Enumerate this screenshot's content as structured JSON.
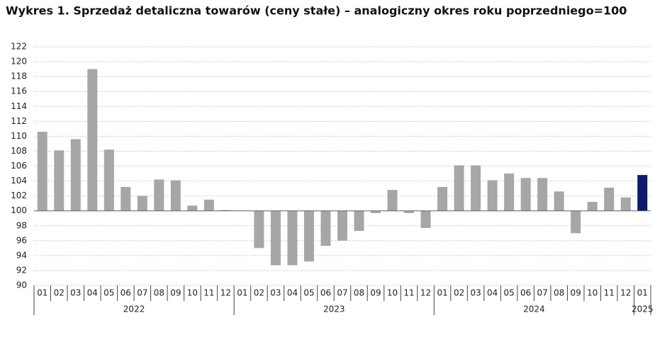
{
  "chart_data": {
    "type": "bar",
    "title": "Wykres 1. Sprzedaż detaliczna towarów (ceny stałe) – analogiczny okres roku poprzedniego=100",
    "groups": [
      {
        "name": "2022",
        "categories": [
          "01",
          "02",
          "03",
          "04",
          "05",
          "06",
          "07",
          "08",
          "09",
          "10",
          "11",
          "12"
        ]
      },
      {
        "name": "2023",
        "categories": [
          "01",
          "02",
          "03",
          "04",
          "05",
          "06",
          "07",
          "08",
          "09",
          "10",
          "11",
          "12"
        ]
      },
      {
        "name": "2024",
        "categories": [
          "01",
          "02",
          "03",
          "04",
          "05",
          "06",
          "07",
          "08",
          "09",
          "10",
          "11",
          "12"
        ]
      },
      {
        "name": "2025",
        "categories": [
          "01"
        ]
      }
    ],
    "values": [
      110.6,
      108.1,
      109.6,
      119.0,
      108.2,
      103.2,
      102.0,
      104.2,
      104.1,
      100.7,
      101.5,
      100.1,
      100.0,
      95.0,
      92.7,
      92.7,
      93.2,
      95.3,
      96.0,
      97.3,
      99.7,
      102.8,
      99.7,
      97.7,
      103.2,
      106.1,
      106.1,
      104.1,
      105.0,
      104.4,
      104.4,
      102.6,
      97.0,
      101.2,
      103.1,
      101.8,
      104.8
    ],
    "colors": [
      "#a6a6a6",
      "#a6a6a6",
      "#a6a6a6",
      "#a6a6a6",
      "#a6a6a6",
      "#a6a6a6",
      "#a6a6a6",
      "#a6a6a6",
      "#a6a6a6",
      "#a6a6a6",
      "#a6a6a6",
      "#a6a6a6",
      "#a6a6a6",
      "#a6a6a6",
      "#a6a6a6",
      "#a6a6a6",
      "#a6a6a6",
      "#a6a6a6",
      "#a6a6a6",
      "#a6a6a6",
      "#a6a6a6",
      "#a6a6a6",
      "#a6a6a6",
      "#a6a6a6",
      "#a6a6a6",
      "#a6a6a6",
      "#a6a6a6",
      "#a6a6a6",
      "#a6a6a6",
      "#a6a6a6",
      "#a6a6a6",
      "#a6a6a6",
      "#a6a6a6",
      "#a6a6a6",
      "#a6a6a6",
      "#a6a6a6",
      "#0d1a6e"
    ],
    "baseline": 100,
    "ylim": [
      90,
      122
    ],
    "yticks": [
      90,
      92,
      94,
      96,
      98,
      100,
      102,
      104,
      106,
      108,
      110,
      112,
      114,
      116,
      118,
      120,
      122
    ],
    "grid": true
  }
}
